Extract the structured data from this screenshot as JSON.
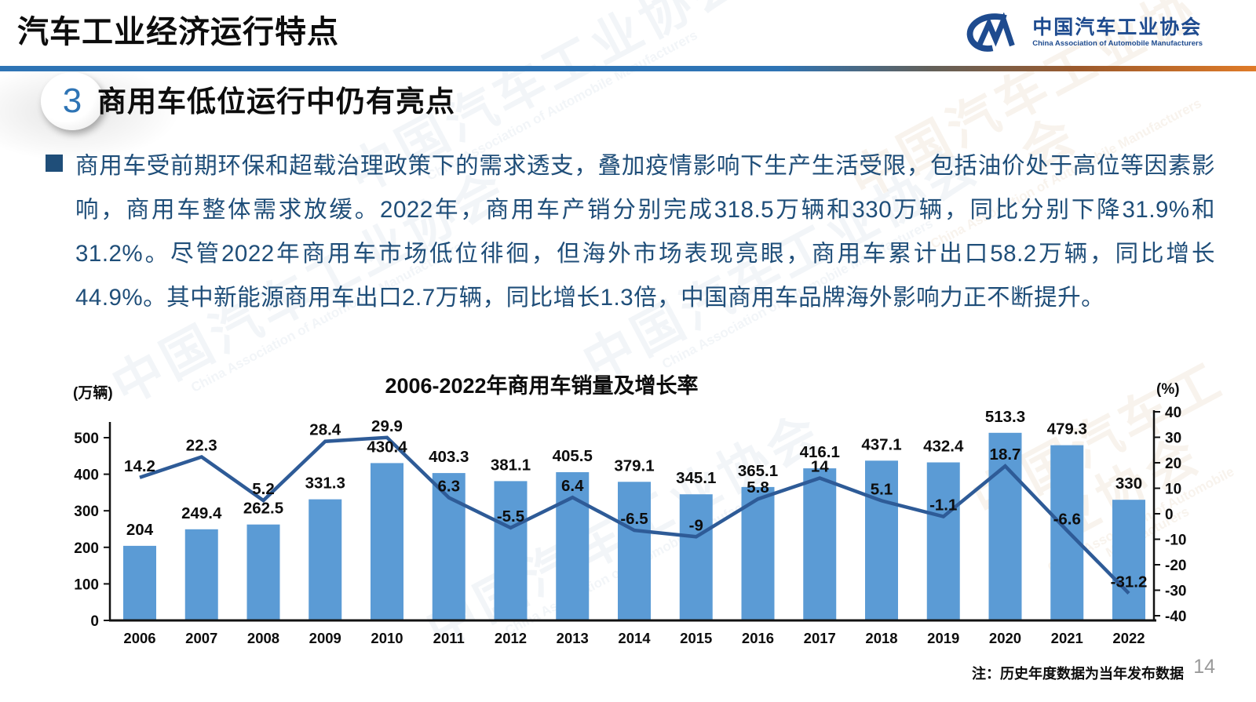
{
  "slide": {
    "header_title": "汽车工业经济运行特点",
    "logo": {
      "glyph": "CM-mark",
      "name_zh": "中国汽车工业协会",
      "name_en": "China Association of Automobile Manufacturers"
    },
    "section": {
      "number": "3",
      "heading": "商用车低位运行中仍有亮点"
    },
    "body_text": "商用车受前期环保和超载治理政策下的需求透支，叠加疫情影响下生产生活受限，包括油价处于高位等因素影响，商用车整体需求放缓。2022年，商用车产销分别完成318.5万辆和330万辆，同比分别下降31.9%和31.2%。尽管2022年商用车市场低位徘徊，但海外市场表现亮眼，商用车累计出口58.2万辆，同比增长44.9%。其中新能源商用车出口2.7万辆，同比增长1.3倍，中国商用车品牌海外影响力正不断提升。",
    "note": "注：历史年度数据为当年发布数据",
    "page_number": "14",
    "colors": {
      "bar": "#5B9BD5",
      "line": "#2E5B97",
      "body_text": "#1F4E79",
      "accent_blue": "#2E74B5",
      "divider_orange": "#E07B28",
      "logo_blue": "#1E4B8F"
    }
  },
  "watermark": {
    "zh": "中国汽车工业协会",
    "en": "China Association of Automobile Manufacturers"
  },
  "chart_data": {
    "type": "bar+line",
    "title": "2006-2022年商用车销量及增长率",
    "left_axis_unit": "(万辆)",
    "right_axis_unit": "(%)",
    "categories": [
      "2006",
      "2007",
      "2008",
      "2009",
      "2010",
      "2011",
      "2012",
      "2013",
      "2014",
      "2015",
      "2016",
      "2017",
      "2018",
      "2019",
      "2020",
      "2021",
      "2022"
    ],
    "series": [
      {
        "name": "商用车销量(万辆)",
        "type": "bar",
        "axis": "left",
        "values": [
          204,
          249.4,
          262.5,
          331.3,
          430.4,
          403.3,
          381.1,
          405.5,
          379.1,
          345.1,
          365.1,
          416.1,
          437.1,
          432.4,
          513.3,
          479.3,
          330
        ]
      },
      {
        "name": "增长率(%)",
        "type": "line",
        "axis": "right",
        "values": [
          14.2,
          22.3,
          5.2,
          28.4,
          29.9,
          6.3,
          -5.5,
          6.4,
          -6.5,
          -9,
          5.8,
          14,
          5.1,
          -1.1,
          18.7,
          -6.6,
          -31.2
        ]
      }
    ],
    "left_axis_ticks": [
      0,
      100,
      200,
      300,
      400,
      500
    ],
    "right_axis_ticks": [
      40,
      30,
      20,
      10,
      0,
      -10,
      -20,
      -30,
      -40
    ],
    "left_ylim": [
      0,
      550
    ],
    "right_ylim": [
      -40,
      44
    ],
    "grid": false,
    "legend": "none"
  }
}
